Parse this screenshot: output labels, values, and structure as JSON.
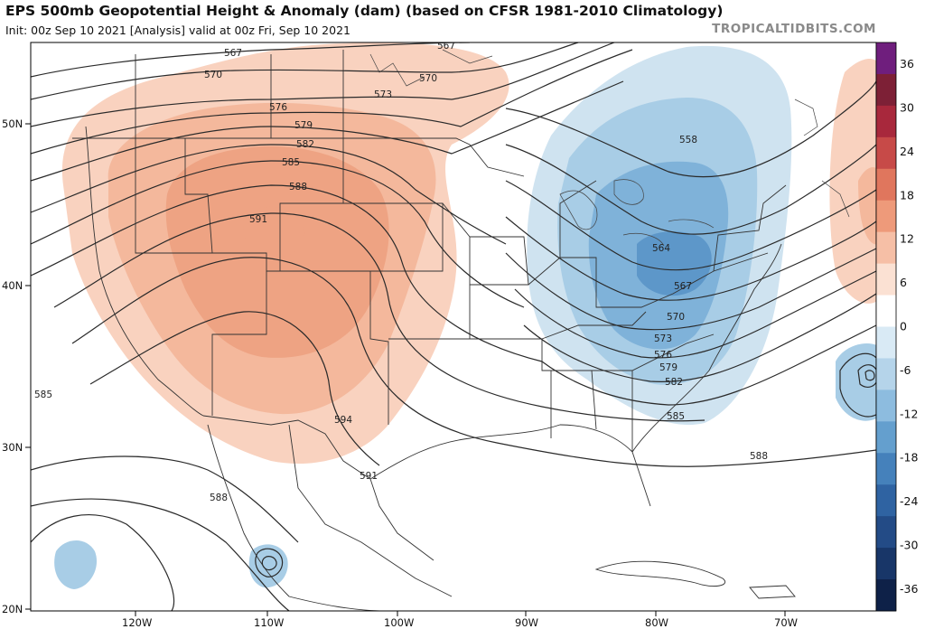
{
  "header": {
    "title": "EPS 500mb Geopotential Height & Anomaly (dam) (based on CFSR 1981-2010 Climatology)",
    "subtitle": "Init: 00z Sep 10 2021   [Analysis]   valid at 00z Fri, Sep 10 2021",
    "credit": "TROPICALTIDBITS.COM"
  },
  "map": {
    "lat_labels": [
      "50N",
      "40N",
      "30N",
      "20N"
    ],
    "lon_labels": [
      "120W",
      "110W",
      "100W",
      "90W",
      "80W",
      "70W"
    ],
    "contour_labels": [
      "567",
      "570",
      "573",
      "576",
      "579",
      "582",
      "585",
      "588",
      "591",
      "594",
      "591",
      "588",
      "585",
      "567",
      "570",
      "558",
      "564",
      "567",
      "570",
      "573",
      "576",
      "579",
      "582",
      "585",
      "588"
    ],
    "colors": {
      "ridge_light": "#f9d2bf",
      "ridge_mid": "#f4b89c",
      "ridge_dark": "#eea383",
      "trough_light": "#cfe3f0",
      "trough_mid": "#a8cde6",
      "trough_dark": "#7fb2d9",
      "trough_core": "#5d97c9"
    }
  },
  "colorbar": {
    "ticks": [
      "36",
      "30",
      "24",
      "18",
      "12",
      "6",
      "0",
      "-6",
      "-12",
      "-18",
      "-24",
      "-30",
      "-36"
    ],
    "colors": [
      "#6f1e7d",
      "#7d2036",
      "#a8283c",
      "#c74a48",
      "#e0765d",
      "#ee9a7a",
      "#f6bfa6",
      "#fbe1d3",
      "#ffffff",
      "#d9eaf5",
      "#b5d4ea",
      "#8dbcdf",
      "#649fce",
      "#4581bb",
      "#2f63a2",
      "#234b86",
      "#183668",
      "#0e2148"
    ]
  }
}
